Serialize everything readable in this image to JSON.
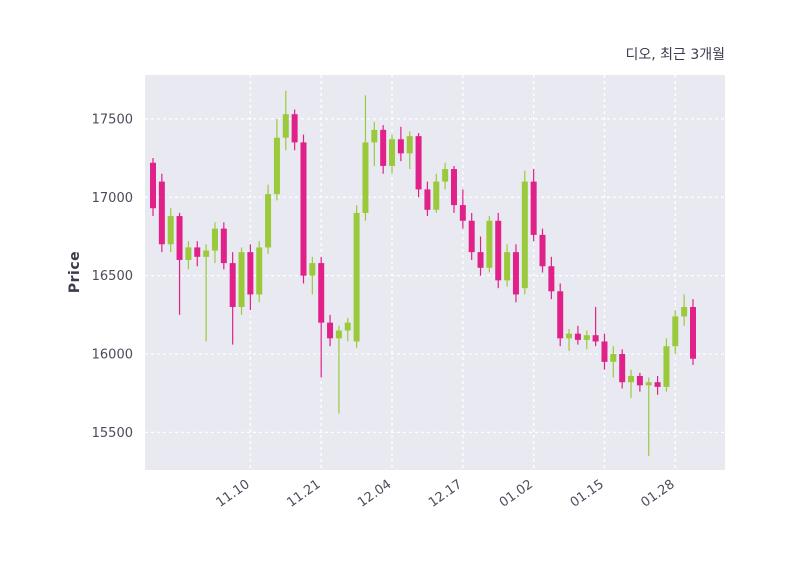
{
  "chart_data": {
    "type": "candlestick",
    "title": "디오, 최근 3개월",
    "ylabel": "Price",
    "yticks": [
      15500,
      16000,
      16500,
      17000,
      17500
    ],
    "ylim": [
      15260,
      17780
    ],
    "grid": "on",
    "plot_bg": "#e9e9f1",
    "grid_color": "#ffffff",
    "up_color": "#9aca3c",
    "down_color": "#e0218a",
    "tick_label_color": "#4c4c5c",
    "x_ticks": [
      {
        "index": 11,
        "label": "11.10"
      },
      {
        "index": 19,
        "label": "11.21"
      },
      {
        "index": 27,
        "label": "12.04"
      },
      {
        "index": 35,
        "label": "12.17"
      },
      {
        "index": 43,
        "label": "01.02"
      },
      {
        "index": 51,
        "label": "01.15"
      },
      {
        "index": 59,
        "label": "01.28"
      }
    ],
    "ohlc_order": [
      "open",
      "high",
      "low",
      "close"
    ],
    "candles": [
      [
        17220,
        17250,
        16880,
        16930
      ],
      [
        17100,
        17150,
        16650,
        16700
      ],
      [
        16700,
        16930,
        16650,
        16880
      ],
      [
        16880,
        16900,
        16250,
        16600
      ],
      [
        16600,
        16720,
        16540,
        16680
      ],
      [
        16680,
        16720,
        16560,
        16620
      ],
      [
        16620,
        16700,
        16080,
        16660
      ],
      [
        16660,
        16840,
        16580,
        16800
      ],
      [
        16800,
        16840,
        16540,
        16580
      ],
      [
        16580,
        16650,
        16060,
        16300
      ],
      [
        16300,
        16680,
        16250,
        16650
      ],
      [
        16650,
        16700,
        16280,
        16380
      ],
      [
        16380,
        16720,
        16330,
        16680
      ],
      [
        16680,
        17080,
        16640,
        17020
      ],
      [
        17020,
        17500,
        16980,
        17380
      ],
      [
        17380,
        17680,
        17300,
        17530
      ],
      [
        17530,
        17560,
        17300,
        17350
      ],
      [
        17350,
        17400,
        16450,
        16500
      ],
      [
        16500,
        16620,
        16380,
        16580
      ],
      [
        16580,
        16620,
        15850,
        16200
      ],
      [
        16200,
        16250,
        16050,
        16100
      ],
      [
        16100,
        16180,
        15620,
        16150
      ],
      [
        16150,
        16230,
        16080,
        16200
      ],
      [
        16080,
        16950,
        16040,
        16900
      ],
      [
        16900,
        17650,
        16850,
        17350
      ],
      [
        17350,
        17480,
        17200,
        17430
      ],
      [
        17430,
        17460,
        17150,
        17200
      ],
      [
        17200,
        17400,
        17150,
        17370
      ],
      [
        17370,
        17450,
        17230,
        17280
      ],
      [
        17280,
        17420,
        17180,
        17390
      ],
      [
        17390,
        17410,
        17000,
        17050
      ],
      [
        17050,
        17100,
        16880,
        16920
      ],
      [
        16920,
        17150,
        16900,
        17100
      ],
      [
        17100,
        17220,
        17050,
        17180
      ],
      [
        17180,
        17200,
        16900,
        16950
      ],
      [
        16950,
        17050,
        16800,
        16850
      ],
      [
        16850,
        16900,
        16600,
        16650
      ],
      [
        16650,
        16750,
        16500,
        16550
      ],
      [
        16550,
        16880,
        16520,
        16850
      ],
      [
        16850,
        16900,
        16420,
        16470
      ],
      [
        16470,
        16700,
        16430,
        16650
      ],
      [
        16650,
        16700,
        16330,
        16380
      ],
      [
        16420,
        17170,
        16380,
        17100
      ],
      [
        17100,
        17180,
        16720,
        16760
      ],
      [
        16760,
        16800,
        16520,
        16560
      ],
      [
        16560,
        16620,
        16350,
        16400
      ],
      [
        16400,
        16450,
        16050,
        16100
      ],
      [
        16100,
        16160,
        16020,
        16130
      ],
      [
        16130,
        16180,
        16060,
        16090
      ],
      [
        16090,
        16150,
        16030,
        16120
      ],
      [
        16120,
        16300,
        16050,
        16080
      ],
      [
        16080,
        16130,
        15900,
        15950
      ],
      [
        15950,
        16050,
        15850,
        16000
      ],
      [
        16000,
        16030,
        15780,
        15820
      ],
      [
        15820,
        15900,
        15720,
        15860
      ],
      [
        15860,
        15880,
        15760,
        15800
      ],
      [
        15800,
        15850,
        15350,
        15820
      ],
      [
        15820,
        15860,
        15740,
        15790
      ],
      [
        15790,
        16100,
        15760,
        16050
      ],
      [
        16050,
        16280,
        16000,
        16240
      ],
      [
        16240,
        16380,
        16180,
        16300
      ],
      [
        16300,
        16350,
        15930,
        15970
      ]
    ]
  }
}
